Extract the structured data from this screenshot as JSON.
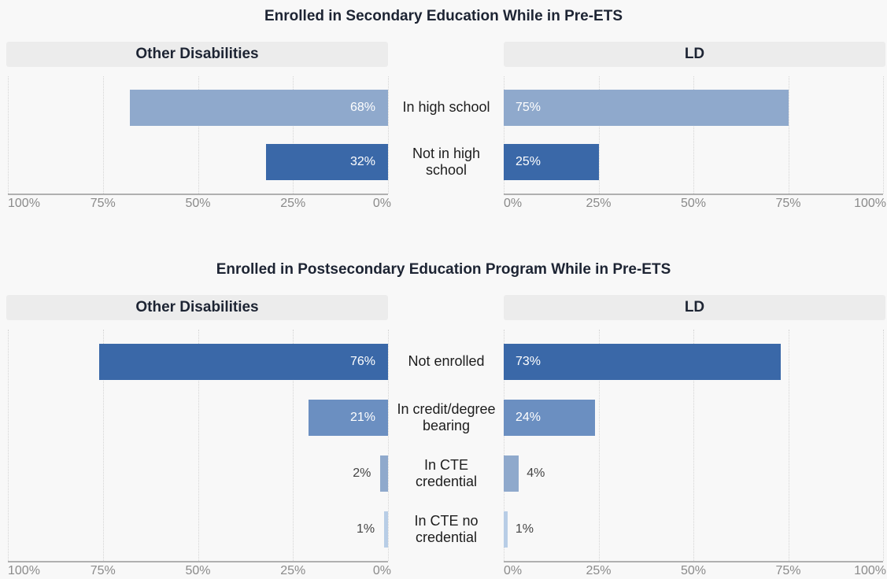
{
  "chart_data": [
    {
      "type": "butterfly",
      "title": "Enrolled in Secondary Education While in Pre-ETS",
      "categories": [
        "In high school",
        "Not in high school"
      ],
      "colors": [
        "#8fa9cc",
        "#3a68a8"
      ],
      "series": [
        {
          "name": "Other Disabilities",
          "values": [
            68,
            32
          ],
          "value_labels": [
            "68%",
            "32%"
          ]
        },
        {
          "name": "LD",
          "values": [
            75,
            25
          ],
          "value_labels": [
            "75%",
            "25%"
          ]
        }
      ],
      "xlim": [
        0,
        100
      ],
      "xticks": [
        {
          "value": 0,
          "label": "0%"
        },
        {
          "value": 25,
          "label": "25%"
        },
        {
          "value": 50,
          "label": "50%"
        },
        {
          "value": 75,
          "label": "75%"
        },
        {
          "value": 100,
          "label": "100%"
        }
      ],
      "grid": true
    },
    {
      "type": "butterfly",
      "title": "Enrolled in Postsecondary Education Program While in Pre-ETS",
      "categories": [
        "Not enrolled",
        "In credit/degree bearing",
        "In CTE credential",
        "In CTE no credential"
      ],
      "colors": [
        "#3a68a8",
        "#6b8fc1",
        "#8fa9cc",
        "#b8cde6"
      ],
      "series": [
        {
          "name": "Other Disabilities",
          "values": [
            76,
            21,
            2,
            1
          ],
          "value_labels": [
            "76%",
            "21%",
            "2%",
            "1%"
          ]
        },
        {
          "name": "LD",
          "values": [
            73,
            24,
            4,
            1
          ],
          "value_labels": [
            "73%",
            "24%",
            "4%",
            "1%"
          ]
        }
      ],
      "xlim": [
        0,
        100
      ],
      "xticks": [
        {
          "value": 0,
          "label": "0%"
        },
        {
          "value": 25,
          "label": "25%"
        },
        {
          "value": 50,
          "label": "50%"
        },
        {
          "value": 75,
          "label": "75%"
        },
        {
          "value": 100,
          "label": "100%"
        }
      ],
      "grid": true
    }
  ]
}
